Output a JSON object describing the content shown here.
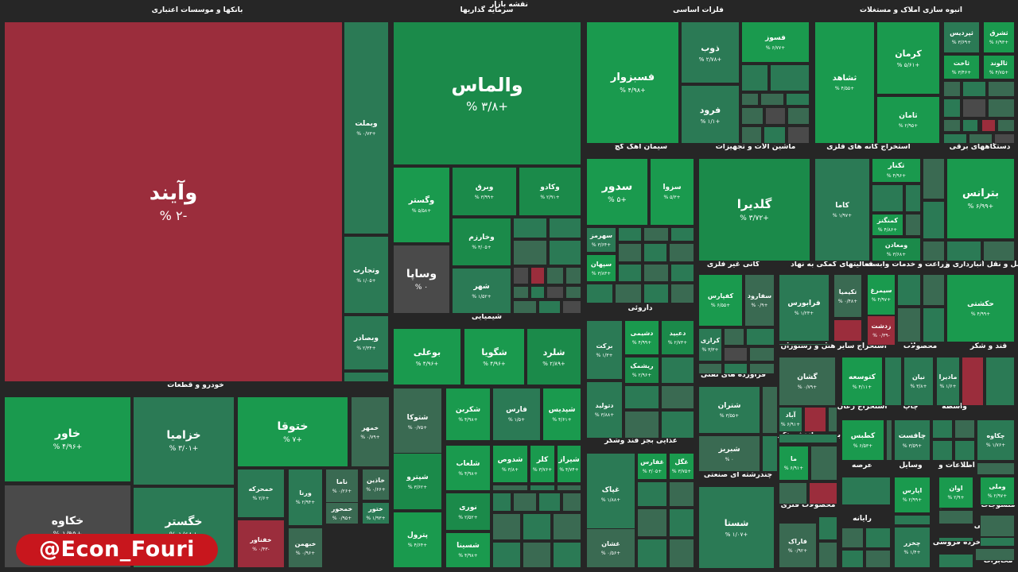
{
  "title": "نقشه بازار",
  "watermark": "@Econ_Fouri",
  "colors": {
    "1": "#1a9a4e",
    "2": "#1b8a4a",
    "3": "#2b7a55",
    "4": "#3a6a52",
    "5": "#4a4a4a",
    "6": "#5a3a44",
    "7": "#9b2d3c",
    "8": "#8a2a3a"
  },
  "chart_data": {
    "type": "heatmap",
    "sections": [
      "بانکها و موسسات اعتباری",
      "سرمایه گذاریها",
      "فلزات اساسی",
      "انبوه سازی املاک و مستغلات",
      "خودرو و قطعات",
      "شیمیایی",
      "سیمان آهک گچ",
      "ماشین آلات و تجهیزات",
      "استخراج کانه های فلزی",
      "دستگاههای برقی",
      "کانی غیر فلزی",
      "فعالیتهای کمکی به نهاد",
      "زراعت و خدمات وابسته",
      "حمل و نقل انبارداری و",
      "داروئی",
      "فراورده های نفتی",
      "هتل و رستوران",
      "استخراج سایر",
      "محصولات",
      "قند و شکر",
      "غذایی بجز قند وشکر",
      "بیمه و بازنشستگی",
      "استخراج زغال",
      "چاپ",
      "واسطه",
      "چندرشته ای صنعتی",
      "محصولات فلزی",
      "عرضه",
      "وسایل",
      "اطلاعات و",
      "رایانه",
      "لاستیک و",
      "منسوجات",
      "فنی",
      "کاشی",
      "خرده فروشی",
      "مخابرات"
    ],
    "tiles": [
      {
        "name": "وآیند",
        "value": "-۲ %",
        "c": 7
      },
      {
        "name": "وبملت",
        "value": "+۰/۷۳ %",
        "c": 3
      },
      {
        "name": "وتجارت",
        "value": "+۱/۰۵ %",
        "c": 3
      },
      {
        "name": "وبصادر",
        "value": "+۲/۳۴ %",
        "c": 3
      },
      {
        "name": "والماس",
        "value": "+۳/۸ %",
        "c": 2
      },
      {
        "name": "وگستر",
        "value": "+۵/۵۸ %",
        "c": 1
      },
      {
        "name": "وبرق",
        "value": "+۳/۹۹ %",
        "c": 2
      },
      {
        "name": "وکادو",
        "value": "+۲/۹۱ %",
        "c": 2
      },
      {
        "name": "وخارزم",
        "value": "+۳/۰۵ %",
        "c": 2
      },
      {
        "name": "وساپا",
        "value": "۰ %",
        "c": 5
      },
      {
        "name": "شهر",
        "value": "+۱/۵۲ %",
        "c": 3
      },
      {
        "name": "فسبزوار",
        "value": "+۴/۹۸ %",
        "c": 1
      },
      {
        "name": "ذوب",
        "value": "+۲/۷۸ %",
        "c": 3
      },
      {
        "name": "فسوز",
        "value": "+۶/۷۷ %",
        "c": 1
      },
      {
        "name": "فرود",
        "value": "+۱/۱ %",
        "c": 3
      },
      {
        "name": "ثشاهد",
        "value": "+۴/۵۵ %",
        "c": 1
      },
      {
        "name": "کرمان",
        "value": "+۵/۶۱ %",
        "c": 1
      },
      {
        "name": "ثامان",
        "value": "+۲/۹۵ %",
        "c": 1
      },
      {
        "name": "ثپردیس",
        "value": "+۳/۶۹ %",
        "c": 3
      },
      {
        "name": "ثشرق",
        "value": "+۶/۹۳ %",
        "c": 1
      },
      {
        "name": "ثاخت",
        "value": "+۳/۴۶ %",
        "c": 1
      },
      {
        "name": "ثالوند",
        "value": "+۴/۷۵ %",
        "c": 1
      },
      {
        "name": "خاور",
        "value": "+۴/۹۶ %",
        "c": 1
      },
      {
        "name": "خزامیا",
        "value": "+۳/۰۱ %",
        "c": 3
      },
      {
        "name": "ختوقا",
        "value": "+۷ %",
        "c": 1
      },
      {
        "name": "خمهر",
        "value": "+۰/۷۹ %",
        "c": 4
      },
      {
        "name": "خکاوه",
        "value": "+۱/۹۵ %",
        "c": 5
      },
      {
        "name": "خگستر",
        "value": "+۱/۶۸ %",
        "c": 3
      },
      {
        "name": "خمحرکه",
        "value": "+۲/۶ %",
        "c": 3
      },
      {
        "name": "ورنا",
        "value": "+۲/۹۴ %",
        "c": 3
      },
      {
        "name": "ناما",
        "value": "+۰/۲۶ %",
        "c": 4
      },
      {
        "name": "خاذین",
        "value": "+۰/۶۶ %",
        "c": 4
      },
      {
        "name": "خمحور",
        "value": "+۰/۹۵ %",
        "c": 4
      },
      {
        "name": "ختور",
        "value": "+۱/۹۳ %",
        "c": 3
      },
      {
        "name": "خفناور",
        "value": "-۰/۴۳ %",
        "c": 7
      },
      {
        "name": "خبهمن",
        "value": "+۰/۹۶ %",
        "c": 4
      },
      {
        "name": "بوعلی",
        "value": "+۴/۹۶ %",
        "c": 1
      },
      {
        "name": "شگویا",
        "value": "+۴/۹۶ %",
        "c": 1
      },
      {
        "name": "شلرد",
        "value": "+۲/۸۹ %",
        "c": 2
      },
      {
        "name": "شتوکا",
        "value": "+۰/۷۵ %",
        "c": 4
      },
      {
        "name": "شکربن",
        "value": "+۴/۹۸ %",
        "c": 1
      },
      {
        "name": "فارس",
        "value": "+۱/۵ %",
        "c": 3
      },
      {
        "name": "شپدیس",
        "value": "+۴/۶۱ %",
        "c": 1
      },
      {
        "name": "شپترو",
        "value": "+۳/۶۲ %",
        "c": 2
      },
      {
        "name": "شلعاب",
        "value": "+۴/۹۸ %",
        "c": 1
      },
      {
        "name": "شدوص",
        "value": "+۳/۸ %",
        "c": 1
      },
      {
        "name": "کلر",
        "value": "+۳/۷۶ %",
        "c": 1
      },
      {
        "name": "شیراز",
        "value": "+۴/۷۴ %",
        "c": 1
      },
      {
        "name": "نوری",
        "value": "+۲/۵۲ %",
        "c": 2
      },
      {
        "name": "پترول",
        "value": "+۴/۶۴ %",
        "c": 1
      },
      {
        "name": "شسینا",
        "value": "+۴/۹۸ %",
        "c": 1
      },
      {
        "name": "سدور",
        "value": "+۵ %",
        "c": 1
      },
      {
        "name": "سزوا",
        "value": "+۵/۳ %",
        "c": 1
      },
      {
        "name": "سهرمز",
        "value": "+۳/۶۴ %",
        "c": 3
      },
      {
        "name": "سپهان",
        "value": "+۳/۸۳ %",
        "c": 1
      },
      {
        "name": "گلدیرا",
        "value": "+۳/۷۲ %",
        "c": 2
      },
      {
        "name": "کاما",
        "value": "+۱/۹۷ %",
        "c": 3
      },
      {
        "name": "تکنار",
        "value": "+۴/۹۶ %",
        "c": 1
      },
      {
        "name": "کمنگنز",
        "value": "+۴/۸۶ %",
        "c": 1
      },
      {
        "name": "ومعادن",
        "value": "+۳/۶۸ %",
        "c": 2
      },
      {
        "name": "بترانس",
        "value": "+۶/۹۹ %",
        "c": 1
      },
      {
        "name": "کفپارس",
        "value": "+۶/۵۵ %",
        "c": 1
      },
      {
        "name": "سفارود",
        "value": "+۰/۹ %",
        "c": 4
      },
      {
        "name": "کرازی",
        "value": "+۳/۳ %",
        "c": 3
      },
      {
        "name": "فرابورس",
        "value": "+۱/۲۳ %",
        "c": 3
      },
      {
        "name": "تکیمیا",
        "value": "+۰/۴۸ %",
        "c": 4
      },
      {
        "name": "سیمرغ",
        "value": "+۴/۹۷ %",
        "c": 1
      },
      {
        "name": "زدشت",
        "value": "-۰/۳۹ %",
        "c": 7
      },
      {
        "name": "حکشتی",
        "value": "+۴/۹۹ %",
        "c": 1
      },
      {
        "name": "برکت",
        "value": "+۱/۳ %",
        "c": 3
      },
      {
        "name": "دشیمی",
        "value": "+۴/۹۹ %",
        "c": 1
      },
      {
        "name": "دعبید",
        "value": "+۲/۷۳ %",
        "c": 2
      },
      {
        "name": "ریشمک",
        "value": "+۲/۹۶ %",
        "c": 2
      },
      {
        "name": "دتولید",
        "value": "+۳/۸۸ %",
        "c": 3
      },
      {
        "name": "شتران",
        "value": "+۳/۵۵ %",
        "c": 3
      },
      {
        "name": "شبریز",
        "value": "۰ %",
        "c": 4
      },
      {
        "name": "گشان",
        "value": "+۰/۷۹ %",
        "c": 4
      },
      {
        "name": "کتوسعه",
        "value": "+۴/۱۱ %",
        "c": 1
      },
      {
        "name": "نیان",
        "value": "+۳/۸ %",
        "c": 3
      },
      {
        "name": "مادیرا",
        "value": "+۱/۶ %",
        "c": 3
      },
      {
        "name": "آباد",
        "value": "+۶/۹۱ %",
        "c": 3
      },
      {
        "name": "کطبس",
        "value": "+۶/۵۳ %",
        "c": 1
      },
      {
        "name": "چافست",
        "value": "+۳/۵۹ %",
        "c": 3
      },
      {
        "name": "چکاوه",
        "value": "+۱/۷۶ %",
        "c": 3
      },
      {
        "name": "غپاک",
        "value": "+۱/۸۸ %",
        "c": 3
      },
      {
        "name": "غفارس",
        "value": "+۳/۰۵ %",
        "c": 1
      },
      {
        "name": "غگل",
        "value": "+۳/۷۵ %",
        "c": 1
      },
      {
        "name": "غشان",
        "value": "+۰/۵۶ %",
        "c": 4
      },
      {
        "name": "شستا",
        "value": "+۱/۰۷ %",
        "c": 3
      },
      {
        "name": "ما",
        "value": "+۶/۹۱ %",
        "c": 1
      },
      {
        "name": "فاراک",
        "value": "+۰/۹۲ %",
        "c": 4
      },
      {
        "name": "اپارس",
        "value": "+۲/۹۹ %",
        "c": 1
      },
      {
        "name": "اوان",
        "value": "+۲/۹ %",
        "c": 1
      },
      {
        "name": "وملی",
        "value": "+۲/۹۷ %",
        "c": 1
      },
      {
        "name": "چخزر",
        "value": "+۱/۴ %",
        "c": 3
      }
    ]
  }
}
